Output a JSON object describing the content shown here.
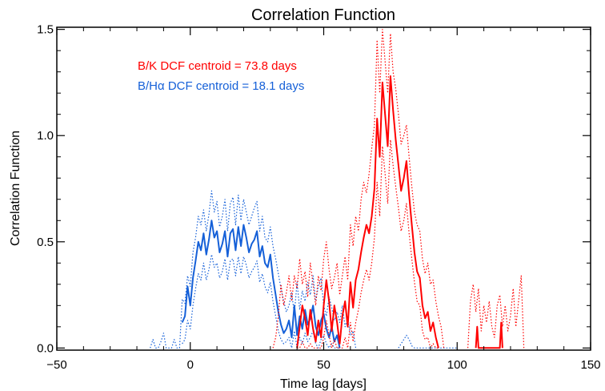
{
  "chart_data": {
    "type": "line",
    "title": "Correlation Function",
    "xlabel": "Time lag [days]",
    "ylabel": "Correlation Function",
    "xlim": [
      -50,
      150
    ],
    "ylim": [
      -0.01,
      1.51
    ],
    "xticks": [
      -50,
      0,
      50,
      100,
      150
    ],
    "xtick_labels": [
      "−50",
      "0",
      "50",
      "100",
      "150"
    ],
    "yticks": [
      0.0,
      0.5,
      1.0,
      1.5
    ],
    "ytick_labels": [
      "0.0",
      "0.5",
      "1.0",
      "1.5"
    ],
    "grid": false,
    "annotations": [
      {
        "text": "B/K   DCF centroid = 73.8 days",
        "color": "#ff0000"
      },
      {
        "text": "B/Hα DCF centroid = 18.1 days",
        "color": "#1560d8"
      }
    ],
    "series": [
      {
        "color": "#1560d8",
        "style": "solid",
        "x": [
          -3,
          -2,
          -1,
          0,
          1,
          2,
          3,
          4,
          5,
          6,
          7,
          8,
          9,
          10,
          11,
          12,
          13,
          14,
          15,
          16,
          17,
          18,
          19,
          20,
          21,
          22,
          23,
          24,
          25,
          26,
          27,
          28,
          29,
          30,
          31,
          32,
          33,
          34,
          35,
          36,
          37,
          38,
          39,
          40,
          41,
          42,
          43,
          44,
          45,
          46,
          47,
          48,
          49,
          50,
          51,
          52,
          53,
          54,
          55,
          56
        ],
        "y": [
          0.12,
          0.15,
          0.29,
          0.2,
          0.33,
          0.41,
          0.5,
          0.46,
          0.54,
          0.44,
          0.51,
          0.6,
          0.52,
          0.55,
          0.45,
          0.49,
          0.55,
          0.43,
          0.54,
          0.56,
          0.46,
          0.57,
          0.48,
          0.58,
          0.52,
          0.45,
          0.49,
          0.51,
          0.55,
          0.43,
          0.48,
          0.4,
          0.38,
          0.44,
          0.33,
          0.25,
          0.17,
          0.11,
          0.07,
          0.09,
          0.13,
          0.05,
          0.2,
          0.06,
          0.15,
          0.09,
          0.18,
          0.11,
          0.14,
          0.2,
          0.1,
          0.06,
          0.13,
          0.16,
          0.09,
          0.05,
          0.1,
          0.03,
          0.06,
          0.0
        ]
      },
      {
        "color": "#1560d8",
        "style": "dotted",
        "x": [
          -15,
          -14,
          -13,
          -12,
          -11,
          -10,
          -9,
          -8,
          -7,
          -6,
          -5,
          -4,
          -3,
          -2,
          -1,
          0,
          1,
          2,
          3,
          4,
          5,
          6,
          7,
          8,
          9,
          10,
          11,
          12,
          13,
          14,
          15,
          16,
          17,
          18,
          19,
          20,
          21,
          22,
          23,
          24,
          25,
          26,
          27,
          28,
          29,
          30,
          31,
          32,
          33,
          34,
          35,
          36,
          37,
          38,
          39,
          40,
          41,
          42,
          43,
          44,
          45,
          46,
          47,
          48,
          49,
          50,
          51,
          52,
          53,
          54,
          55,
          56,
          57,
          58,
          59,
          60,
          61,
          62
        ],
        "y": [
          0.0,
          0.04,
          0.0,
          0.0,
          0.03,
          0.07,
          0.0,
          0.0,
          0.0,
          0.04,
          0.0,
          0.0,
          0.23,
          0.21,
          0.34,
          0.29,
          0.45,
          0.52,
          0.62,
          0.58,
          0.65,
          0.55,
          0.63,
          0.74,
          0.64,
          0.69,
          0.57,
          0.62,
          0.7,
          0.55,
          0.68,
          0.71,
          0.58,
          0.72,
          0.6,
          0.7,
          0.64,
          0.58,
          0.62,
          0.66,
          0.69,
          0.55,
          0.62,
          0.52,
          0.5,
          0.57,
          0.48,
          0.42,
          0.35,
          0.28,
          0.22,
          0.17,
          0.2,
          0.26,
          0.16,
          0.31,
          0.18,
          0.27,
          0.22,
          0.31,
          0.25,
          0.34,
          0.22,
          0.29,
          0.33,
          0.2,
          0.15,
          0.24,
          0.19,
          0.13,
          0.17,
          0.12,
          0.2,
          0.1,
          0.14,
          0.06,
          0.08,
          0.0
        ]
      },
      {
        "color": "#1560d8",
        "style": "dotted",
        "x": [
          -3,
          -2,
          -1,
          0,
          1,
          2,
          3,
          4,
          5,
          6,
          7,
          8,
          9,
          10,
          11,
          12,
          13,
          14,
          15,
          16,
          17,
          18,
          19,
          20,
          21,
          22,
          23,
          24,
          25,
          26,
          27,
          28,
          29,
          30,
          31,
          32,
          33,
          34,
          35,
          36,
          37,
          38,
          39,
          40,
          41,
          42,
          43,
          44,
          45,
          46,
          47,
          48,
          49,
          50,
          51,
          52,
          53,
          54,
          55,
          56
        ],
        "y": [
          0.02,
          0.04,
          0.13,
          0.09,
          0.2,
          0.28,
          0.35,
          0.32,
          0.4,
          0.32,
          0.37,
          0.44,
          0.38,
          0.4,
          0.33,
          0.36,
          0.42,
          0.32,
          0.41,
          0.42,
          0.34,
          0.43,
          0.35,
          0.43,
          0.39,
          0.33,
          0.36,
          0.38,
          0.41,
          0.31,
          0.35,
          0.29,
          0.26,
          0.31,
          0.22,
          0.15,
          0.08,
          0.04,
          0.02,
          0.03,
          0.05,
          0.0,
          0.08,
          0.0,
          0.05,
          0.02,
          0.07,
          0.03,
          0.05,
          0.08,
          0.02,
          0.0,
          0.04,
          0.06,
          0.02,
          0.0,
          0.02,
          0.0,
          0.0,
          0.0
        ]
      },
      {
        "color": "#1560d8",
        "style": "dotted",
        "x": [
          78,
          79,
          80,
          81,
          82,
          83,
          84,
          85,
          86,
          87,
          88,
          89,
          90,
          91,
          92,
          93,
          94,
          95,
          96,
          97,
          98,
          99,
          100
        ],
        "y": [
          0.0,
          0.02,
          0.04,
          0.06,
          0.04,
          0.01,
          0.0,
          0.0,
          0.0,
          0.0,
          0.0,
          0.0,
          0.0,
          0.0,
          0.0,
          0.0,
          0.0,
          0.0,
          0.0,
          0.0,
          0.0,
          0.0,
          0.0
        ]
      },
      {
        "color": "#ff0000",
        "style": "solid",
        "x": [
          40,
          41,
          42,
          43,
          44,
          45,
          46,
          47,
          48,
          49,
          50,
          51,
          52,
          53,
          54,
          55,
          56,
          57,
          58,
          59,
          60,
          61,
          62,
          63,
          64,
          65,
          66,
          67,
          68,
          69,
          70,
          71,
          72,
          73,
          74,
          75,
          76,
          77,
          78,
          79,
          80,
          81,
          82,
          83,
          84,
          85,
          86,
          87,
          88,
          89,
          90,
          91,
          92,
          93
        ],
        "y": [
          0.0,
          0.1,
          0.2,
          0.14,
          0.06,
          0.18,
          0.09,
          0.03,
          0.13,
          0.05,
          0.2,
          0.32,
          0.22,
          0.08,
          0.2,
          0.12,
          0.02,
          0.15,
          0.22,
          0.1,
          0.31,
          0.19,
          0.32,
          0.37,
          0.45,
          0.52,
          0.58,
          0.54,
          0.62,
          0.75,
          1.08,
          0.9,
          1.25,
          1.1,
          0.95,
          1.28,
          1.12,
          0.98,
          0.86,
          0.74,
          0.8,
          0.88,
          0.72,
          0.58,
          0.45,
          0.36,
          0.33,
          0.2,
          0.14,
          0.17,
          0.08,
          0.12,
          0.05,
          0.0
        ]
      },
      {
        "color": "#ff0000",
        "style": "solid",
        "x": [
          107,
          107.5,
          108,
          116,
          116.5,
          117
        ],
        "y": [
          0.0,
          0.1,
          0.0,
          0.0,
          0.12,
          0.0
        ]
      },
      {
        "color": "#ff0000",
        "style": "dotted",
        "x": [
          31,
          32,
          33,
          34,
          35,
          36,
          37,
          38,
          39,
          40,
          41,
          42,
          43,
          44,
          45,
          46,
          47,
          48,
          49,
          50,
          51,
          52,
          53,
          54,
          55,
          56,
          57,
          58,
          59,
          60,
          61,
          62,
          63,
          64,
          65,
          66,
          67,
          68,
          69,
          70,
          71,
          72,
          73,
          74,
          75,
          76,
          77,
          78,
          79,
          80,
          81,
          82,
          83,
          84,
          85,
          86,
          87,
          88,
          89,
          90,
          91,
          92,
          93,
          94,
          95
        ],
        "y": [
          0.0,
          0.05,
          0.15,
          0.3,
          0.2,
          0.26,
          0.34,
          0.22,
          0.34,
          0.28,
          0.42,
          0.3,
          0.36,
          0.24,
          0.4,
          0.3,
          0.2,
          0.34,
          0.27,
          0.42,
          0.5,
          0.37,
          0.28,
          0.33,
          0.4,
          0.25,
          0.34,
          0.43,
          0.32,
          0.58,
          0.48,
          0.62,
          0.55,
          0.7,
          0.78,
          0.73,
          0.82,
          0.94,
          1.05,
          1.45,
          1.2,
          1.5,
          1.35,
          1.2,
          1.48,
          1.3,
          1.22,
          1.1,
          0.96,
          1.0,
          1.05,
          0.9,
          0.76,
          0.64,
          0.58,
          0.55,
          0.42,
          0.35,
          0.4,
          0.3,
          0.32,
          0.22,
          0.15,
          0.1,
          0.0
        ]
      },
      {
        "color": "#ff0000",
        "style": "dotted",
        "x": [
          40,
          41,
          42,
          43,
          44,
          45,
          46,
          47,
          48,
          49,
          50,
          51,
          52,
          53,
          54,
          55,
          56,
          57,
          58,
          59,
          60,
          61,
          62,
          63,
          64,
          65,
          66,
          67,
          68,
          69,
          70,
          71,
          72,
          73,
          74,
          75,
          76,
          77,
          78,
          79,
          80,
          81,
          82,
          83,
          84,
          85,
          86,
          87,
          88,
          89,
          90,
          91,
          92,
          93
        ],
        "y": [
          0.0,
          0.0,
          0.03,
          0.0,
          0.0,
          0.02,
          0.0,
          0.0,
          0.0,
          0.0,
          0.05,
          0.13,
          0.06,
          0.0,
          0.04,
          0.0,
          0.0,
          0.0,
          0.05,
          0.0,
          0.12,
          0.03,
          0.12,
          0.18,
          0.26,
          0.32,
          0.37,
          0.32,
          0.4,
          0.52,
          0.78,
          0.62,
          0.95,
          0.82,
          0.68,
          0.98,
          0.86,
          0.76,
          0.66,
          0.55,
          0.6,
          0.68,
          0.54,
          0.42,
          0.31,
          0.22,
          0.2,
          0.08,
          0.04,
          0.05,
          0.0,
          0.02,
          0.0,
          0.0
        ]
      },
      {
        "color": "#ff0000",
        "style": "dotted",
        "x": [
          104,
          105,
          106,
          107,
          108,
          109,
          110,
          111,
          112,
          113,
          114,
          115,
          116,
          117,
          118,
          119,
          120,
          121,
          122,
          123,
          124,
          125
        ],
        "y": [
          0.0,
          0.22,
          0.3,
          0.17,
          0.28,
          0.08,
          0.2,
          0.12,
          0.22,
          0.1,
          0.05,
          0.2,
          0.25,
          0.1,
          0.2,
          0.08,
          0.15,
          0.28,
          0.1,
          0.22,
          0.34,
          0.0
        ]
      }
    ]
  }
}
